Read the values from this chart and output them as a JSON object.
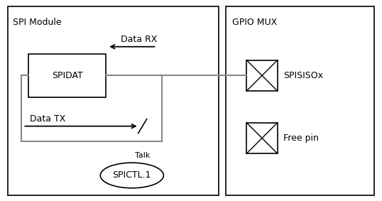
{
  "fig_width": 5.38,
  "fig_height": 2.83,
  "bg_color": "#ffffff",
  "border_color": "#000000",
  "spi_module_label": "SPI Module",
  "gpio_mux_label": "GPIO MUX",
  "spidat_label": "SPIDAT",
  "data_rx_label": "Data RX",
  "data_tx_label": "Data TX",
  "talk_label": "Talk",
  "spictl_label": "SPICTL.1",
  "spisisox_label": "SPISISOx",
  "freepin_label": "Free pin",
  "line_color": "#888888",
  "border_color_dark": "#000000",
  "text_color": "#000000",
  "font_size": 9
}
